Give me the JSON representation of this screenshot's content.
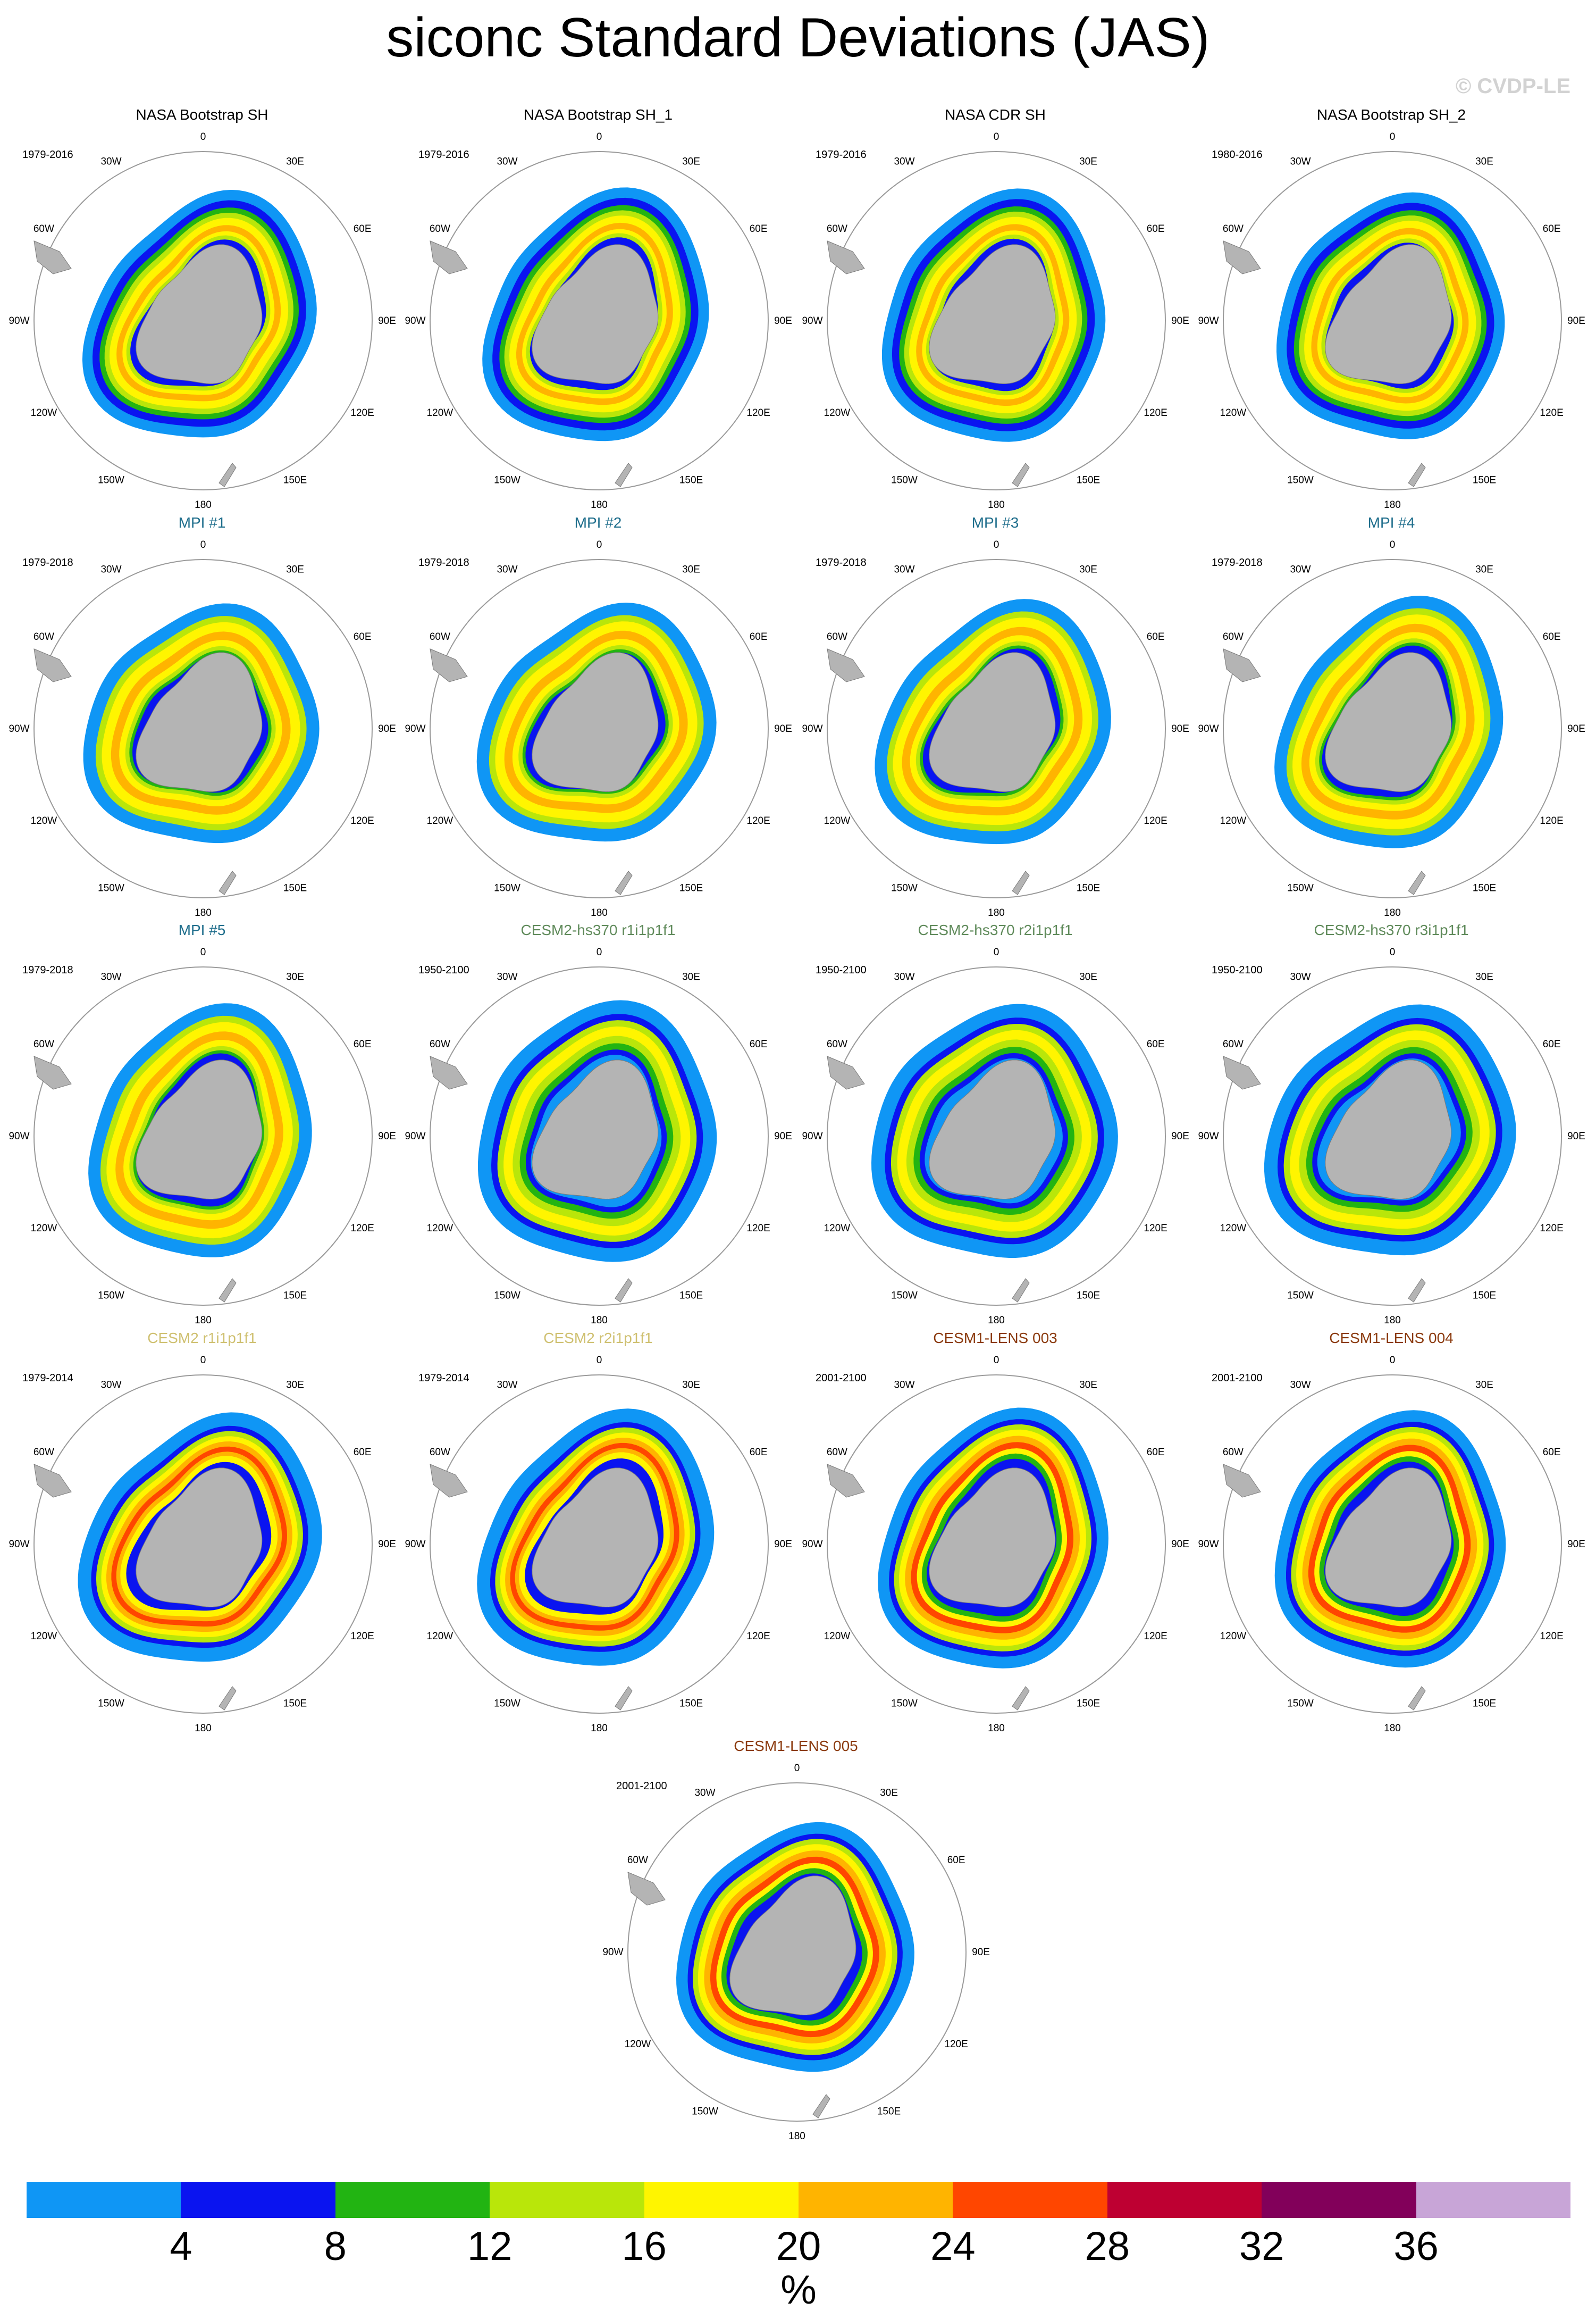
{
  "title": "siconc Standard Deviations (JAS)",
  "watermark": "© CVDP-LE",
  "colors": {
    "land": "#b4b4b4",
    "observation_title": "#000000",
    "mpi_title": "#1f6e8c",
    "cesm2_hs370_title": "#5f8a5a",
    "cesm2_title": "#cfc070",
    "cesm1_lens_title": "#8b3a0e"
  },
  "map_labels": {
    "lon_0": "0",
    "lon_30E": "30E",
    "lon_60E": "60E",
    "lon_90E": "90E",
    "lon_120E": "120E",
    "lon_150E": "150E",
    "lon_180": "180",
    "lon_150W": "150W",
    "lon_120W": "120W",
    "lon_90W": "90W",
    "lon_60W": "60W",
    "lon_30W": "30W"
  },
  "panels": [
    {
      "title": "NASA Bootstrap SH",
      "period": "1979-2016",
      "group": "obs",
      "style": "obs"
    },
    {
      "title": "NASA Bootstrap SH_1",
      "period": "1979-2016",
      "group": "obs",
      "style": "obs"
    },
    {
      "title": "NASA CDR SH",
      "period": "1979-2016",
      "group": "obs",
      "style": "obs"
    },
    {
      "title": "NASA Bootstrap SH_2",
      "period": "1980-2016",
      "group": "obs",
      "style": "obs"
    },
    {
      "title": "MPI #1",
      "period": "1979-2018",
      "group": "mpi",
      "style": "mpi"
    },
    {
      "title": "MPI #2",
      "period": "1979-2018",
      "group": "mpi",
      "style": "mpi"
    },
    {
      "title": "MPI #3",
      "period": "1979-2018",
      "group": "mpi",
      "style": "mpi"
    },
    {
      "title": "MPI #4",
      "period": "1979-2018",
      "group": "mpi",
      "style": "mpi"
    },
    {
      "title": "MPI #5",
      "period": "1979-2018",
      "group": "mpi",
      "style": "mpi"
    },
    {
      "title": "CESM2-hs370 r1i1p1f1",
      "period": "1950-2100",
      "group": "hs370",
      "style": "hs370"
    },
    {
      "title": "CESM2-hs370 r2i1p1f1",
      "period": "1950-2100",
      "group": "hs370",
      "style": "hs370"
    },
    {
      "title": "CESM2-hs370 r3i1p1f1",
      "period": "1950-2100",
      "group": "hs370",
      "style": "hs370"
    },
    {
      "title": "CESM2 r1i1p1f1",
      "period": "1979-2014",
      "group": "cesm2",
      "style": "cesm2"
    },
    {
      "title": "CESM2 r2i1p1f1",
      "period": "1979-2014",
      "group": "cesm2",
      "style": "cesm2"
    },
    {
      "title": "CESM1-LENS 003",
      "period": "2001-2100",
      "group": "lens",
      "style": "lens"
    },
    {
      "title": "CESM1-LENS 004",
      "period": "2001-2100",
      "group": "lens",
      "style": "lens"
    },
    {
      "title": "CESM1-LENS 005",
      "period": "2001-2100",
      "group": "lens",
      "style": "lens"
    }
  ],
  "colorbar": {
    "unit": "%",
    "ticks": [
      "4",
      "8",
      "12",
      "16",
      "20",
      "24",
      "28",
      "32",
      "36"
    ],
    "colors": [
      "#0f96f5",
      "#0a14f0",
      "#22b412",
      "#b9e60a",
      "#fff500",
      "#ffb400",
      "#ff4600",
      "#be0032",
      "#82005a",
      "#c8a5d7"
    ]
  }
}
